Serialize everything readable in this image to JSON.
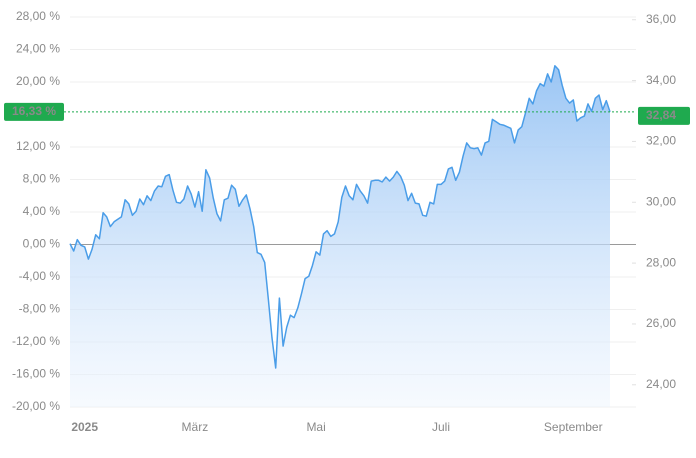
{
  "chart_data": {
    "type": "line",
    "categories": [
      null,
      null,
      null,
      null,
      "2025",
      null,
      null,
      null,
      null,
      null,
      null,
      null,
      null,
      null,
      null,
      null,
      null,
      null,
      null,
      null,
      null,
      null,
      null,
      null,
      null,
      null,
      null,
      null,
      null,
      null,
      null,
      null,
      null,
      null,
      "März",
      null,
      null,
      null,
      null,
      null,
      null,
      null,
      null,
      null,
      null,
      null,
      null,
      null,
      null,
      null,
      null,
      null,
      null,
      null,
      null,
      null,
      null,
      null,
      null,
      null,
      null,
      null,
      null,
      null,
      null,
      null,
      null,
      "Mai",
      null,
      null,
      null,
      null,
      null,
      null,
      null,
      null,
      null,
      null,
      null,
      null,
      null,
      null,
      null,
      null,
      null,
      null,
      null,
      null,
      null,
      null,
      null,
      null,
      null,
      null,
      null,
      null,
      null,
      null,
      null,
      null,
      null,
      "Juli",
      null,
      null,
      null,
      null,
      null,
      null,
      null,
      null,
      null,
      null,
      null,
      null,
      null,
      null,
      null,
      null,
      null,
      null,
      null,
      null,
      null,
      null,
      null,
      null,
      null,
      null,
      null,
      null,
      null,
      null,
      null,
      null,
      null,
      null,
      null,
      "September",
      null,
      null,
      null,
      null,
      null,
      null,
      null,
      null,
      null,
      null
    ],
    "series": [
      {
        "color": "#4a9de8",
        "values": [
          0.1,
          -0.8,
          0.6,
          -0.1,
          -0.3,
          -1.8,
          -0.6,
          1.2,
          0.7,
          3.9,
          3.4,
          2.2,
          2.8,
          3.1,
          3.4,
          5.5,
          5.0,
          3.6,
          4.1,
          5.6,
          4.9,
          6.0,
          5.4,
          6.6,
          7.2,
          7.1,
          8.4,
          8.6,
          6.7,
          5.2,
          5.1,
          5.6,
          7.2,
          6.2,
          4.6,
          6.5,
          4.1,
          9.2,
          8.2,
          5.7,
          3.8,
          2.9,
          5.5,
          5.7,
          7.3,
          6.8,
          4.7,
          5.5,
          6.1,
          4.4,
          2.2,
          -1.0,
          -1.2,
          -2.2,
          -6.8,
          -11.5,
          -15.2,
          -6.6,
          -12.5,
          -10.2,
          -8.7,
          -9.0,
          -7.8,
          -6.1,
          -4.2,
          -3.9,
          -2.6,
          -0.9,
          -1.3,
          1.3,
          1.7,
          1.0,
          1.3,
          2.8,
          5.8,
          7.2,
          6.0,
          5.5,
          7.4,
          6.6,
          6.0,
          5.1,
          7.8,
          7.9,
          7.9,
          7.7,
          8.3,
          7.8,
          8.3,
          9.0,
          8.4,
          7.3,
          5.4,
          6.3,
          5.1,
          5.0,
          3.6,
          3.5,
          5.2,
          5.0,
          7.4,
          7.4,
          7.8,
          9.3,
          9.5,
          7.9,
          8.9,
          10.9,
          12.5,
          11.9,
          11.8,
          11.9,
          11.0,
          12.5,
          12.7,
          15.4,
          15.1,
          14.8,
          14.7,
          14.5,
          14.3,
          12.5,
          14.1,
          14.5,
          16.2,
          18.0,
          17.3,
          18.9,
          19.8,
          19.5,
          21.0,
          20.0,
          22.0,
          21.5,
          19.6,
          18.0,
          17.4,
          17.8,
          15.2,
          15.6,
          15.8,
          17.3,
          16.4,
          18.0,
          18.4,
          16.6,
          17.7,
          16.33
        ]
      }
    ],
    "ylim": [
      -20,
      28
    ],
    "yticks": [
      {
        "value": -20,
        "label": "-20,00 %"
      },
      {
        "value": -16,
        "label": "-16,00 %"
      },
      {
        "value": -12,
        "label": "-12,00 %"
      },
      {
        "value": -8,
        "label": "-8,00 %"
      },
      {
        "value": -4,
        "label": "-4,00 %"
      },
      {
        "value": 0,
        "label": "0,00 %"
      },
      {
        "value": 4,
        "label": "4,00 %"
      },
      {
        "value": 8,
        "label": "8,00 %"
      },
      {
        "value": 12,
        "label": "12,00 %"
      },
      {
        "value": 20,
        "label": "20,00 %"
      },
      {
        "value": 24,
        "label": "24,00 %"
      },
      {
        "value": 28,
        "label": "28,00 %"
      }
    ],
    "y2lim": [
      23.27,
      36.09
    ],
    "y2ticks": [
      {
        "value": 24,
        "label": "24,00"
      },
      {
        "value": 26,
        "label": "26,00"
      },
      {
        "value": 28,
        "label": "28,00"
      },
      {
        "value": 30,
        "label": "30,00"
      },
      {
        "value": 32,
        "label": "32,00"
      },
      {
        "value": 34,
        "label": "34,00"
      },
      {
        "value": 36,
        "label": "36,00"
      }
    ],
    "markers": [
      {
        "value": 16.33,
        "label": "16,33 %",
        "color": "#1faa4f"
      },
      {
        "value": 32.84,
        "label": "32,84",
        "color": "#1faa4f",
        "axis": "y2"
      }
    ],
    "grid": true
  }
}
